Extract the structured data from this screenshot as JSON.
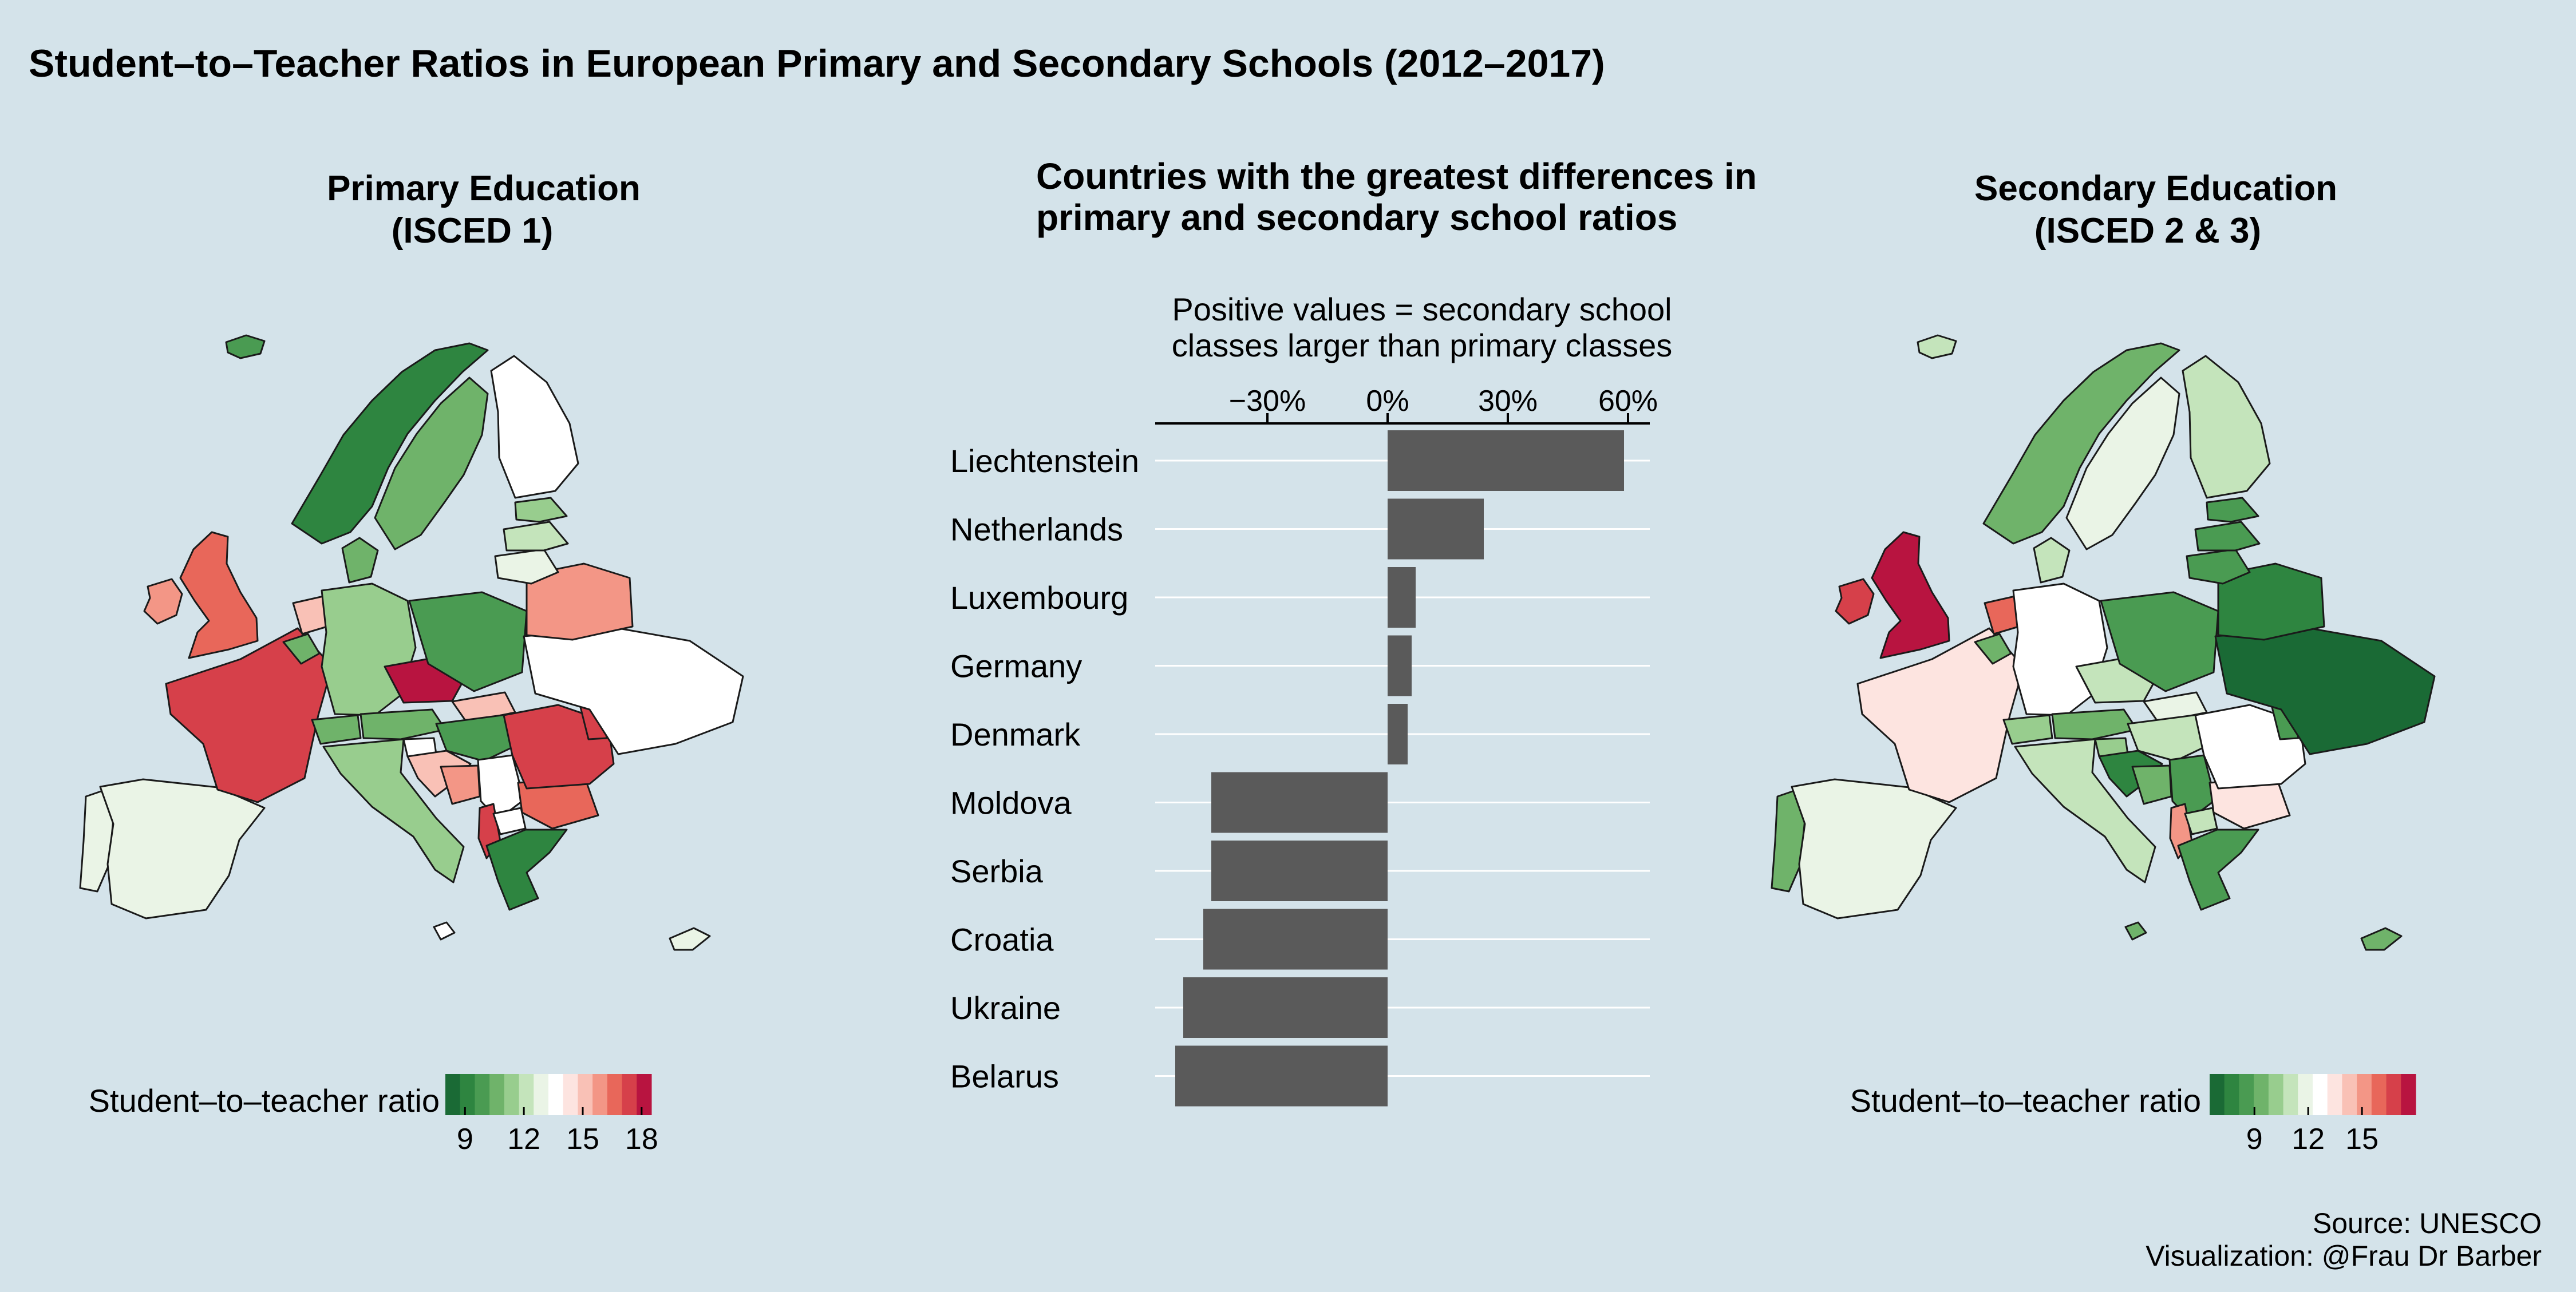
{
  "figure": {
    "title": "Student–to–Teacher Ratios in European Primary and Secondary Schools (2012–2017)",
    "caption_source": "Source: UNESCO",
    "caption_viz": "Visualization: @Frau  Dr  Barber",
    "background": "#d4e3ea"
  },
  "primary_panel": {
    "title_line1": "Primary Education",
    "title_line2": "(ISCED 1)",
    "legend_title": "Student–to–teacher ratio",
    "legend_ticks": [
      "9",
      "12",
      "15",
      "18"
    ]
  },
  "secondary_panel": {
    "title_line1": "Secondary Education",
    "title_line2": "(ISCED 2 & 3)",
    "legend_title": "Student–to–teacher ratio",
    "legend_ticks": [
      "9",
      "12",
      "15"
    ]
  },
  "bar_panel": {
    "title_line1": "Countries with the greatest differences in",
    "title_line2": "primary and secondary school ratios",
    "subtitle_line1": "Positive values = secondary school",
    "subtitle_line2": "classes larger than primary classes",
    "tick_labels": [
      "−30%",
      "0%",
      "30%",
      "60%"
    ]
  },
  "colors": {
    "bar": "#5a5a5a",
    "scale": [
      "#1a6a35",
      "#2e8540",
      "#4a9b52",
      "#6fb36a",
      "#98cd8e",
      "#c4e4bb",
      "#eaf4e6",
      "#ffffff",
      "#fde4e0",
      "#f9c1b6",
      "#f39686",
      "#e8675a",
      "#d6404a",
      "#b81440"
    ]
  },
  "chart_data": [
    {
      "type": "bar",
      "orientation": "horizontal",
      "title": "Countries with the greatest differences in primary and secondary school ratios",
      "subtitle": "Positive values = secondary school classes larger than primary classes",
      "categories": [
        "Liechtenstein",
        "Netherlands",
        "Luxembourg",
        "Germany",
        "Denmark",
        "Moldova",
        "Serbia",
        "Croatia",
        "Ukraine",
        "Belarus"
      ],
      "values": [
        59,
        24,
        7,
        6,
        5,
        -44,
        -44,
        -46,
        -51,
        -53
      ],
      "xlim": [
        -58,
        65
      ],
      "xticks": [
        -30,
        0,
        30,
        60
      ],
      "unit": "%",
      "grid": "horizontal lines per category"
    },
    {
      "type": "heatmap",
      "subtype": "choropleth map",
      "title": "Primary Education (ISCED 1)",
      "legend": "Student–to–teacher ratio",
      "scale_range": [
        8,
        18.5
      ],
      "scale_ticks": [
        9,
        12,
        15,
        18
      ],
      "palette": "diverging green–white–red",
      "values": {
        "United Kingdom": 17,
        "Ireland": 16,
        "France": 17.5,
        "Spain": 12.5,
        "Portugal": 13,
        "Italy": 11,
        "Germany": 11.5,
        "Czech Republic": 18.5,
        "Poland": 10,
        "Belarus": 16,
        "Ukraine": 14,
        "Romania": 17.5,
        "Bulgaria": 16.5,
        "Greece": 9,
        "Albania": 17.5,
        "Norway": 8.5,
        "Sweden": 10.5,
        "Finland": 13.5,
        "Denmark": 10.5,
        "Netherlands": 15.5,
        "Belgium": 10.5,
        "Austria": 10.5,
        "Switzerland": 10.5,
        "Hungary": 10,
        "Slovakia": 15,
        "Slovenia": 13.5,
        "Croatia": 15,
        "Serbia": 14,
        "Bosnia and Herzegovina": 16,
        "Moldova": 18,
        "Estonia": 11,
        "Latvia": 12,
        "Lithuania": 12.5,
        "Macedonia": 14,
        "Iceland": 10,
        "Malta": 14,
        "Cyprus": 12.5
      }
    },
    {
      "type": "heatmap",
      "subtype": "choropleth map",
      "title": "Secondary Education (ISCED 2 & 3)",
      "legend": "Student–to–teacher ratio",
      "scale_range": [
        6.5,
        18
      ],
      "scale_ticks": [
        9,
        12,
        15
      ],
      "palette": "diverging green–white–red",
      "values": {
        "United Kingdom": 18,
        "Ireland": 17.5,
        "France": 13.5,
        "Spain": 11.5,
        "Portugal": 9,
        "Italy": 10.5,
        "Germany": 13,
        "Czech Republic": 11,
        "Poland": 8.5,
        "Belarus": 7,
        "Ukraine": 6.5,
        "Romania": 13,
        "Bulgaria": 13.5,
        "Greece": 8.5,
        "Albania": 15.5,
        "Norway": 9,
        "Sweden": 12,
        "Finland": 11,
        "Denmark": 10.5,
        "Netherlands": 16,
        "Belgium": 9,
        "Austria": 9.5,
        "Switzerland": 10,
        "Hungary": 10.5,
        "Slovakia": 11.5,
        "Slovenia": 10,
        "Croatia": 7.5,
        "Serbia": 8,
        "Bosnia and Herzegovina": 9,
        "Moldova": 8,
        "Estonia": 8,
        "Latvia": 8,
        "Lithuania": 8,
        "Macedonia": 10.5,
        "Iceland": 10.5,
        "Malta": 9.5,
        "Cyprus": 9.5
      }
    }
  ]
}
